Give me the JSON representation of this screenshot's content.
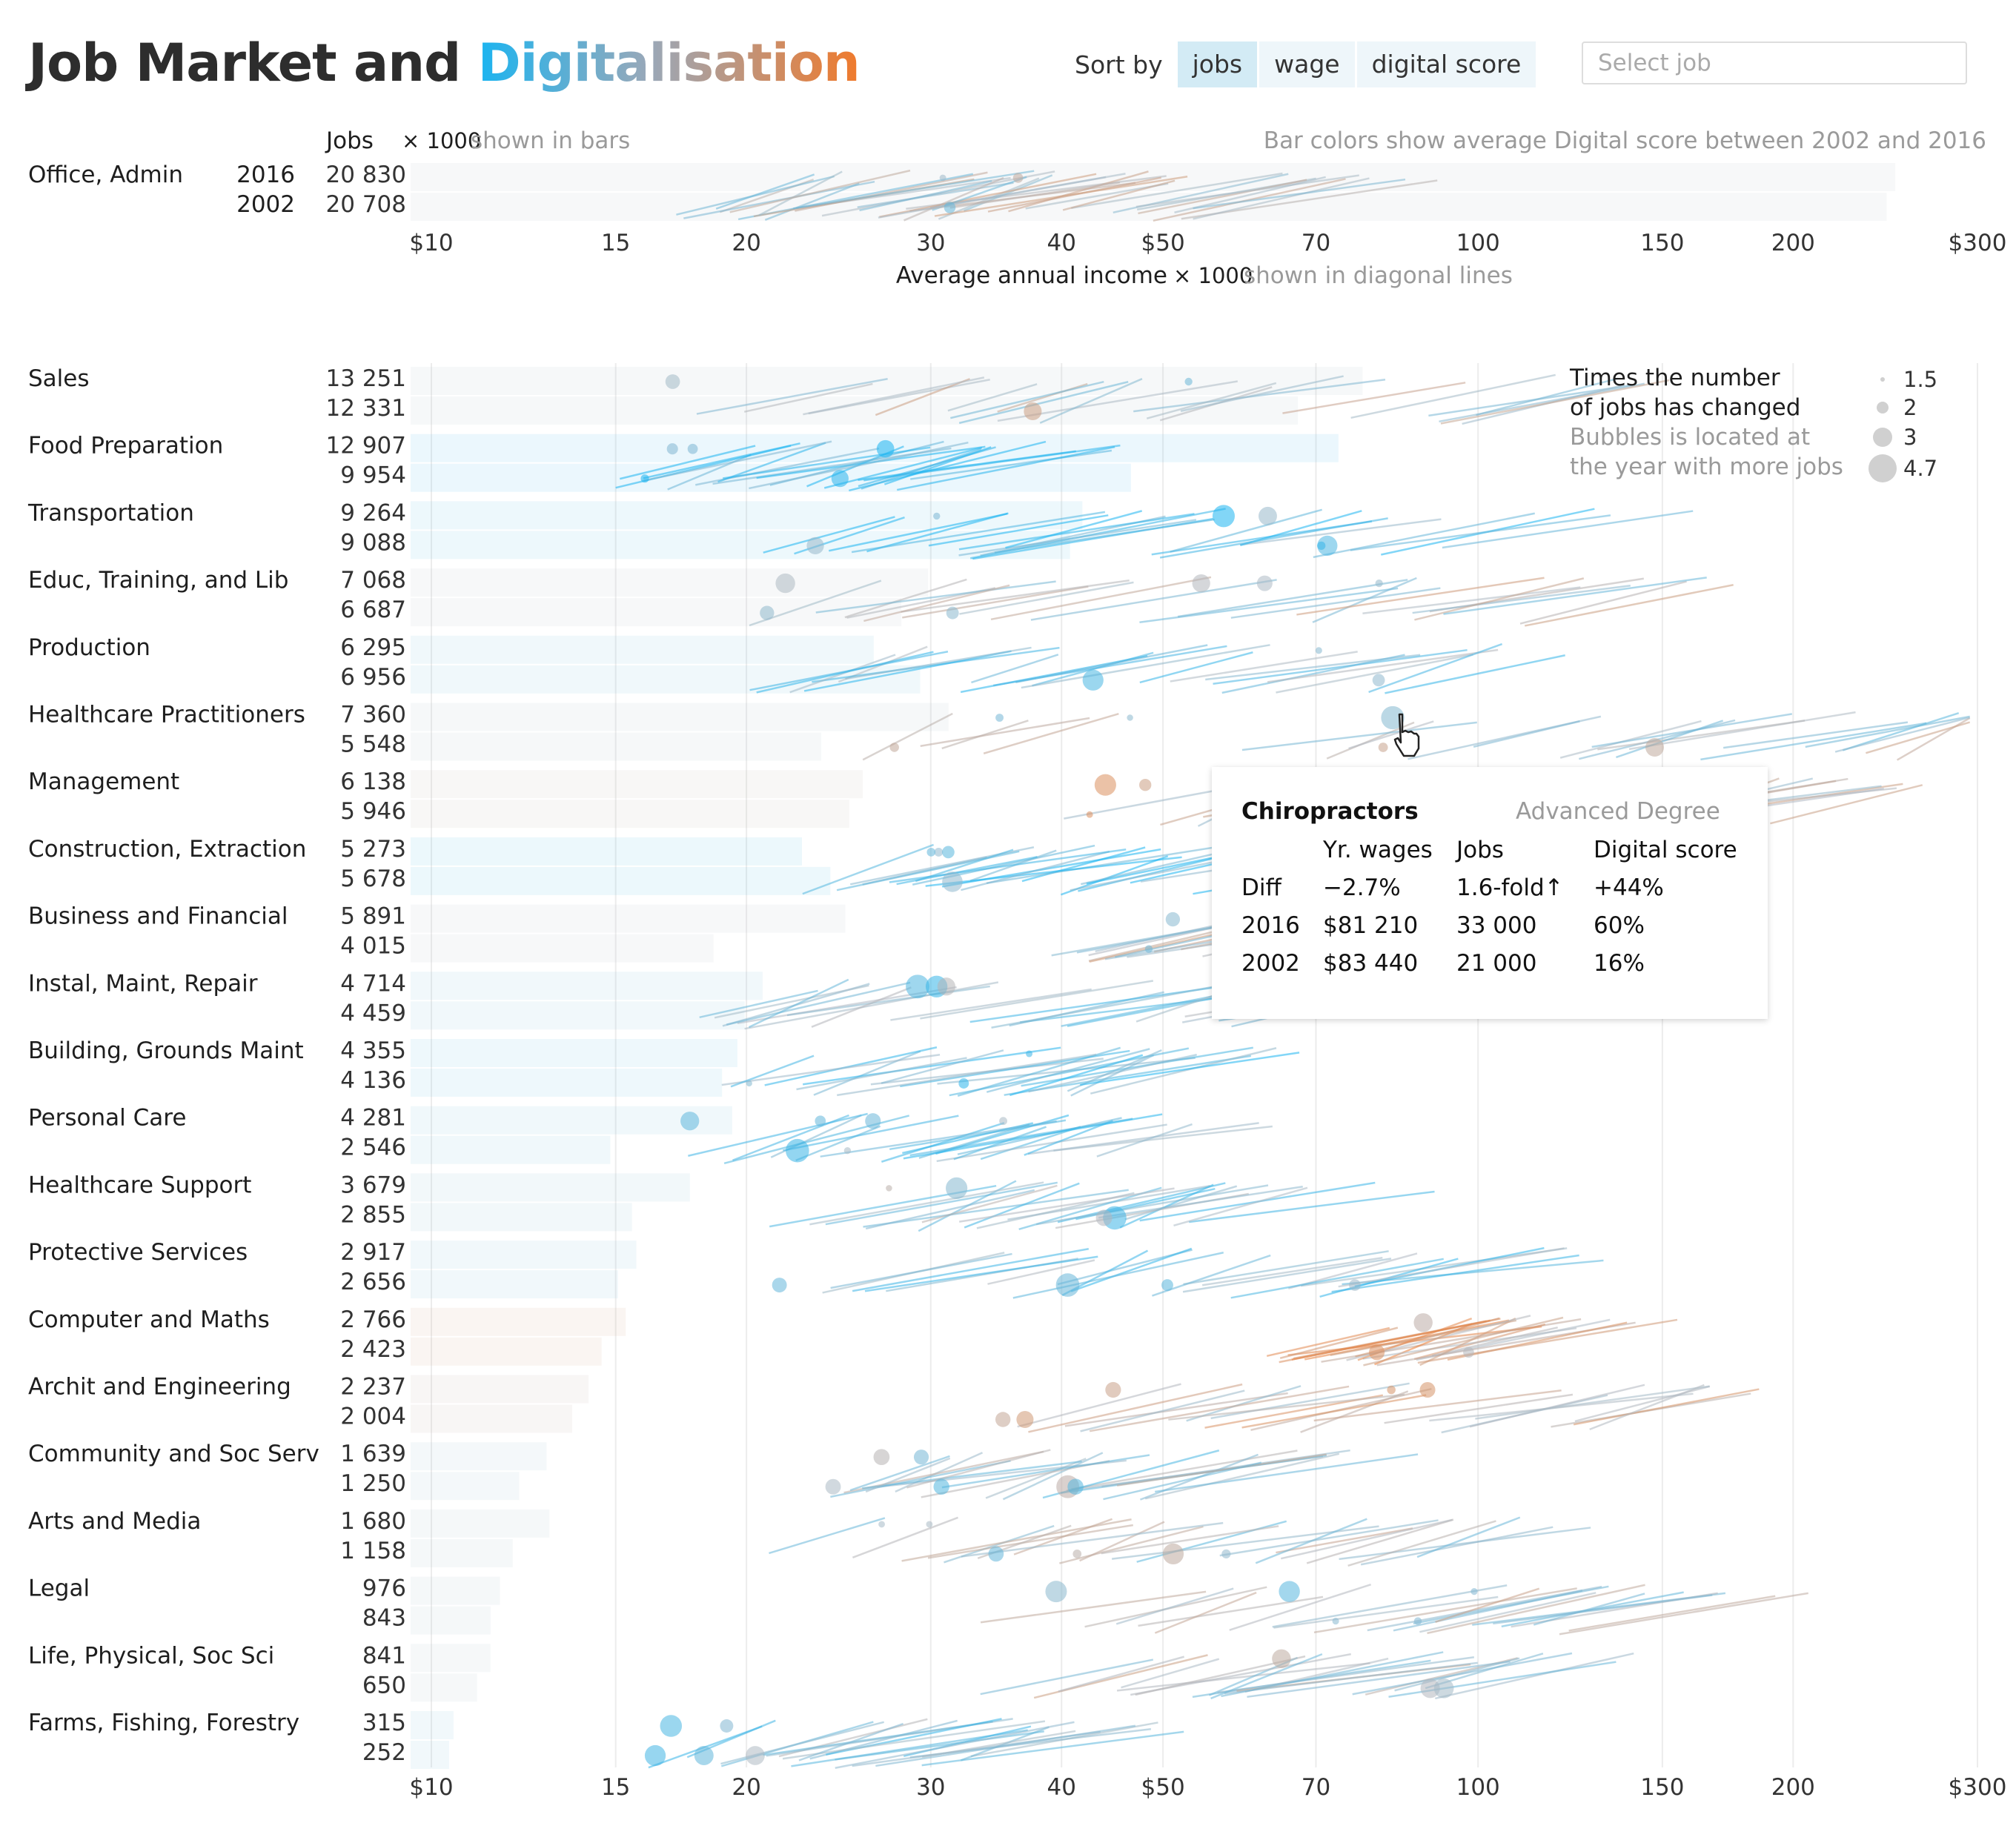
{
  "header": {
    "title_main": "Job Market and",
    "title_accent": "Digitalisation",
    "sort_label": "Sort by",
    "sort_options": [
      "jobs",
      "wage",
      "digital score"
    ],
    "sort_active": "jobs",
    "select_placeholder": "Select job"
  },
  "colors": {
    "low_digital": "#1bb4f0",
    "mid_digital": "#a9b8c4",
    "high_digital": "#f07a2c"
  },
  "tooltip": {
    "title": "Chiropractors",
    "education": "Advanced Degree",
    "col_wages": "Yr. wages",
    "col_jobs": "Jobs",
    "col_digital": "Digital score",
    "rows": [
      {
        "label": "Diff",
        "wages": "−2.7%",
        "jobs": "1.6-fold↑",
        "digital": "+44%"
      },
      {
        "label": "2016",
        "wages": "$81 210",
        "jobs": "33 000",
        "digital": "60%"
      },
      {
        "label": "2002",
        "wages": "$83 440",
        "jobs": "21 000",
        "digital": "16%"
      }
    ]
  },
  "chart_data": {
    "type": "bar",
    "top_note_left": "Jobs",
    "top_note_left_unit": "× 1000",
    "top_note_left_suffix": "shown in bars",
    "top_note_right": "Bar colors show average Digital score between 2002 and 2016",
    "xlabel": "Average annual income",
    "xlabel_unit": "× 1000",
    "xlabel_suffix": "shown in diagonal lines",
    "x_scale": "log",
    "xlim": [
      10,
      300
    ],
    "x_ticks": [
      10,
      15,
      20,
      30,
      40,
      50,
      70,
      100,
      150,
      200,
      300
    ],
    "x_tick_labels": [
      "$10",
      "15",
      "20",
      "30",
      "40",
      "$50",
      "70",
      "100",
      "150",
      "200",
      "$300"
    ],
    "years": [
      "2016",
      "2002"
    ],
    "legend": {
      "title_line1": "Times the number",
      "title_line2": "of jobs has changed",
      "note_line1": "Bubbles is located at",
      "note_line2": "the year with more jobs",
      "sizes": [
        1.5,
        2,
        3,
        4.7
      ],
      "size_labels": [
        "1.5",
        "2",
        "3",
        "4.7"
      ]
    },
    "featured": {
      "category": "Office, Admin",
      "jobs_2016": "20 830",
      "jobs_2002": "20 708",
      "v2016": 20830,
      "v2002": 20708,
      "digital": 0.5
    },
    "categories": [
      {
        "name": "Sales",
        "jobs_2016": "13 251",
        "jobs_2002": "12 331",
        "v2016": 13251,
        "v2002": 12331,
        "digital": 0.48,
        "wmin": 17,
        "wmax": 118
      },
      {
        "name": "Food Preparation",
        "jobs_2016": "12 907",
        "jobs_2002": "9 954",
        "v2016": 12907,
        "v2002": 9954,
        "digital": 0.1,
        "wmin": 15,
        "wmax": 33
      },
      {
        "name": "Transportation",
        "jobs_2016": "9 264",
        "jobs_2002": "9 088",
        "v2016": 9264,
        "v2002": 9088,
        "digital": 0.18,
        "wmin": 20,
        "wmax": 108
      },
      {
        "name": "Educ, Training, and Lib",
        "jobs_2016": "7 068",
        "jobs_2002": "6 687",
        "v2016": 7068,
        "v2002": 6687,
        "digital": 0.5,
        "wmin": 20,
        "wmax": 140
      },
      {
        "name": "Production",
        "jobs_2016": "6 295",
        "jobs_2002": "6 956",
        "v2016": 6295,
        "v2002": 6956,
        "digital": 0.28,
        "wmin": 20,
        "wmax": 92
      },
      {
        "name": "Healthcare Practitioners",
        "jobs_2016": "7 360",
        "jobs_2002": "5 548",
        "v2016": 7360,
        "v2002": 5548,
        "digital": 0.46,
        "wmin": 24,
        "wmax": 285
      },
      {
        "name": "Management",
        "jobs_2016": "6 138",
        "jobs_2002": "5 946",
        "v2016": 6138,
        "v2002": 5946,
        "digital": 0.6,
        "wmin": 40,
        "wmax": 230
      },
      {
        "name": "Construction, Extraction",
        "jobs_2016": "5 273",
        "jobs_2002": "5 678",
        "v2016": 5273,
        "v2002": 5678,
        "digital": 0.15,
        "wmin": 22,
        "wmax": 60
      },
      {
        "name": "Business and Financial",
        "jobs_2016": "5 891",
        "jobs_2002": "4 015",
        "v2016": 5891,
        "v2002": 4015,
        "digital": 0.5,
        "wmin": 38,
        "wmax": 110
      },
      {
        "name": "Instal, Maint, Repair",
        "jobs_2016": "4 714",
        "jobs_2002": "4 459",
        "v2016": 4714,
        "v2002": 4459,
        "digital": 0.32,
        "wmin": 18,
        "wmax": 68
      },
      {
        "name": "Building, Grounds Maint",
        "jobs_2016": "4 355",
        "jobs_2002": "4 136",
        "v2016": 4355,
        "v2002": 4136,
        "digital": 0.2,
        "wmin": 18,
        "wmax": 48
      },
      {
        "name": "Personal Care",
        "jobs_2016": "4 281",
        "jobs_2002": "2 546",
        "v2016": 4281,
        "v2002": 2546,
        "digital": 0.28,
        "wmin": 17,
        "wmax": 52
      },
      {
        "name": "Healthcare Support",
        "jobs_2016": "3 679",
        "jobs_2002": "2 855",
        "v2016": 3679,
        "v2002": 2855,
        "digital": 0.35,
        "wmin": 19,
        "wmax": 60
      },
      {
        "name": "Protective Services",
        "jobs_2016": "2 917",
        "jobs_2002": "2 656",
        "v2016": 2917,
        "v2002": 2656,
        "digital": 0.3,
        "wmin": 20,
        "wmax": 85
      },
      {
        "name": "Computer and Maths",
        "jobs_2016": "2 766",
        "jobs_2002": "2 423",
        "v2016": 2766,
        "v2002": 2423,
        "digital": 0.72,
        "wmin": 62,
        "wmax": 112
      },
      {
        "name": "Archit and Engineering",
        "jobs_2016": "2 237",
        "jobs_2002": "2 004",
        "v2016": 2237,
        "v2002": 2004,
        "digital": 0.62,
        "wmin": 33,
        "wmax": 148
      },
      {
        "name": "Community and Soc Serv",
        "jobs_2016": "1 639",
        "jobs_2002": "1 250",
        "v2016": 1639,
        "v2002": 1250,
        "digital": 0.4,
        "wmin": 23,
        "wmax": 58
      },
      {
        "name": "Arts and Media",
        "jobs_2016": "1 680",
        "jobs_2002": "1 158",
        "v2016": 1680,
        "v2002": 1158,
        "digital": 0.45,
        "wmin": 20,
        "wmax": 102
      },
      {
        "name": "Legal",
        "jobs_2016": "976",
        "jobs_2002": "843",
        "v2016": 976,
        "v2002": 843,
        "digital": 0.45,
        "wmin": 32,
        "wmax": 140
      },
      {
        "name": "Life, Physical, Soc Sci",
        "jobs_2016": "841",
        "jobs_2002": "650",
        "v2016": 841,
        "v2002": 650,
        "digital": 0.48,
        "wmin": 33,
        "wmax": 112
      },
      {
        "name": "Farms, Fishing, Forestry",
        "jobs_2016": "315",
        "jobs_2002": "252",
        "v2016": 315,
        "v2002": 252,
        "digital": 0.3,
        "wmin": 16,
        "wmax": 37
      }
    ]
  }
}
